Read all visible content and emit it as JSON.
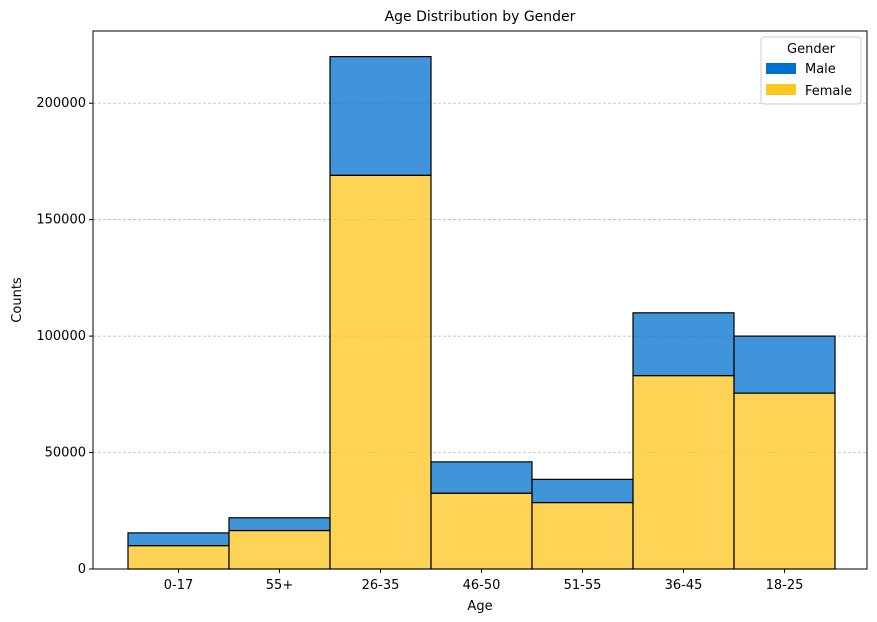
{
  "chart_data": {
    "type": "bar",
    "stacked": true,
    "title": "Age Distribution by Gender",
    "xlabel": "Age",
    "ylabel": "Counts",
    "categories": [
      "0-17",
      "55+",
      "26-35",
      "46-50",
      "51-55",
      "36-45",
      "18-25"
    ],
    "series": [
      {
        "name": "Female",
        "color": "#FFC61E",
        "values": [
          10000,
          16500,
          169000,
          32500,
          28500,
          83000,
          75500
        ]
      },
      {
        "name": "Male",
        "color": "#0072CE",
        "values": [
          5500,
          5500,
          51000,
          13500,
          10000,
          27000,
          24500
        ]
      }
    ],
    "ylim": [
      0,
      231000
    ],
    "yticks": [
      0,
      50000,
      100000,
      150000,
      200000
    ],
    "ytick_labels": [
      "0",
      "50000",
      "100000",
      "150000",
      "200000"
    ],
    "grid": {
      "axis": "y",
      "style": "dashed"
    },
    "legend": {
      "title": "Gender",
      "placement": "top-right",
      "entries": [
        {
          "label": "Male",
          "color": "#0072CE"
        },
        {
          "label": "Female",
          "color": "#FFC61E"
        }
      ]
    }
  }
}
